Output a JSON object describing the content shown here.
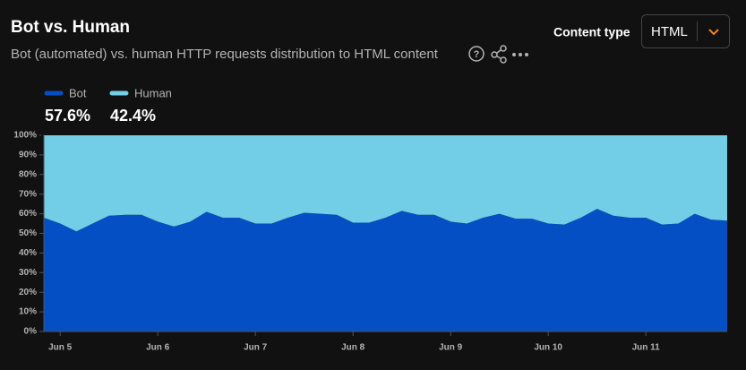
{
  "header": {
    "title": "Bot vs. Human",
    "subtitle": "Bot (automated) vs. human HTTP requests distribution to HTML content"
  },
  "controls": {
    "label": "Content type",
    "selected": "HTML"
  },
  "chart_data": {
    "type": "stacked-area-percent",
    "categories": [
      null,
      "Jun 5",
      null,
      null,
      null,
      null,
      null,
      "Jun 6",
      null,
      null,
      null,
      null,
      null,
      "Jun 7",
      null,
      null,
      null,
      null,
      null,
      "Jun 8",
      null,
      null,
      null,
      null,
      null,
      "Jun 9",
      null,
      null,
      null,
      null,
      null,
      "Jun 10",
      null,
      null,
      null,
      null,
      null,
      "Jun 11",
      null,
      null,
      null,
      null,
      null
    ],
    "series": [
      {
        "name": "Bot",
        "color": "#034fc3",
        "share": 57.6,
        "share_label": "57.6%",
        "values": [
          58,
          55,
          51,
          55,
          59,
          59.5,
          59.5,
          56,
          53.5,
          56,
          61,
          58,
          58,
          55,
          55,
          58,
          60.5,
          60,
          59.5,
          55.5,
          55.5,
          58,
          61.5,
          59.5,
          59.5,
          56,
          55,
          58,
          60,
          57.5,
          57.5,
          55,
          54.5,
          58,
          62.5,
          59,
          58,
          58,
          54.5,
          55,
          60,
          57,
          56.5
        ]
      },
      {
        "name": "Human",
        "color": "#72cde6",
        "share": 42.4,
        "share_label": "42.4%",
        "values": [
          42,
          45,
          49,
          45,
          41,
          40.5,
          40.5,
          44,
          46.5,
          44,
          39,
          42,
          42,
          45,
          45,
          42,
          39.5,
          40,
          40.5,
          44.5,
          44.5,
          42,
          38.5,
          40.5,
          40.5,
          44,
          45,
          42,
          40,
          42.5,
          42.5,
          45,
          45.5,
          42,
          37.5,
          41,
          42,
          42,
          45.5,
          45,
          40,
          43,
          43.5
        ]
      }
    ],
    "ylim": [
      0,
      100
    ],
    "yticks": [
      {
        "value": 0,
        "label": "0%"
      },
      {
        "value": 10,
        "label": "10%"
      },
      {
        "value": 20,
        "label": "20%"
      },
      {
        "value": 30,
        "label": "30%"
      },
      {
        "value": 40,
        "label": "40%"
      },
      {
        "value": 50,
        "label": "50%"
      },
      {
        "value": 60,
        "label": "60%"
      },
      {
        "value": 70,
        "label": "70%"
      },
      {
        "value": 80,
        "label": "80%"
      },
      {
        "value": 90,
        "label": "90%"
      },
      {
        "value": 100,
        "label": "100%"
      }
    ]
  }
}
